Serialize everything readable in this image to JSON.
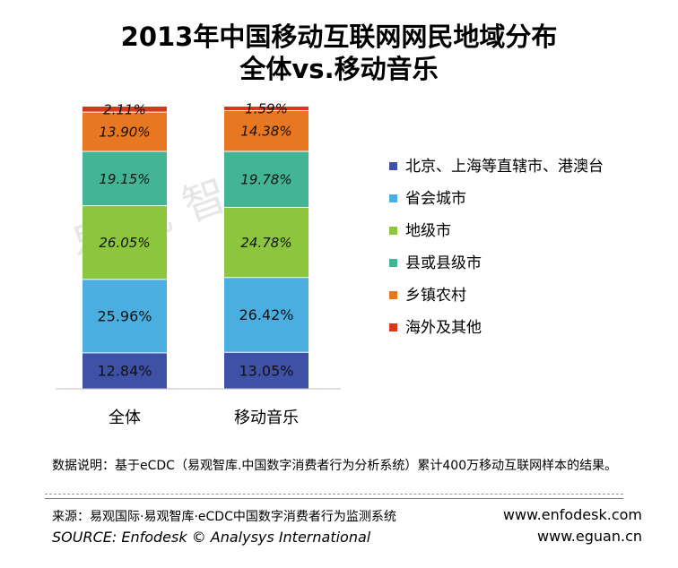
{
  "title": {
    "line1": "2013年中国移动互联网网民地域分布",
    "line2": "全体vs.移动音乐"
  },
  "watermark": "易观智库",
  "chart_data": {
    "type": "bar",
    "stacked": true,
    "percent_stacked": true,
    "title": "2013年中国移动互联网网民地域分布 全体vs.移动音乐",
    "categories": [
      "全体",
      "移动音乐"
    ],
    "series": [
      {
        "name": "北京、上海等直辖市、港澳台",
        "values": [
          12.84,
          13.05
        ],
        "color": "#3f51a6",
        "label_style": "normal"
      },
      {
        "name": "省会城市",
        "values": [
          25.96,
          26.42
        ],
        "color": "#4aaee0",
        "label_style": "normal"
      },
      {
        "name": "地级市",
        "values": [
          26.05,
          24.78
        ],
        "color": "#8cc63e",
        "label_style": "italic"
      },
      {
        "name": "县或县级市",
        "values": [
          19.15,
          19.78
        ],
        "color": "#43b594",
        "label_style": "italic"
      },
      {
        "name": "乡镇农村",
        "values": [
          13.9,
          14.38
        ],
        "color": "#e87722",
        "label_style": "italic"
      },
      {
        "name": "海外及其他",
        "values": [
          2.11,
          1.59
        ],
        "color": "#d9371c",
        "label_style": "italic"
      }
    ],
    "ylim": [
      0,
      100
    ],
    "grid": false,
    "legend": "right"
  },
  "note": "数据说明：基于eCDC（易观智库.中国数字消费者行为分析系统）累计400万移动互联网样本的结果。",
  "source_cn": "来源：易观国际·易观智库·eCDC中国数字消费者行为监测系统",
  "source_en": "SOURCE: Enfodesk © Analysys International",
  "websites": [
    "www.enfodesk.com",
    "www.eguan.cn"
  ]
}
